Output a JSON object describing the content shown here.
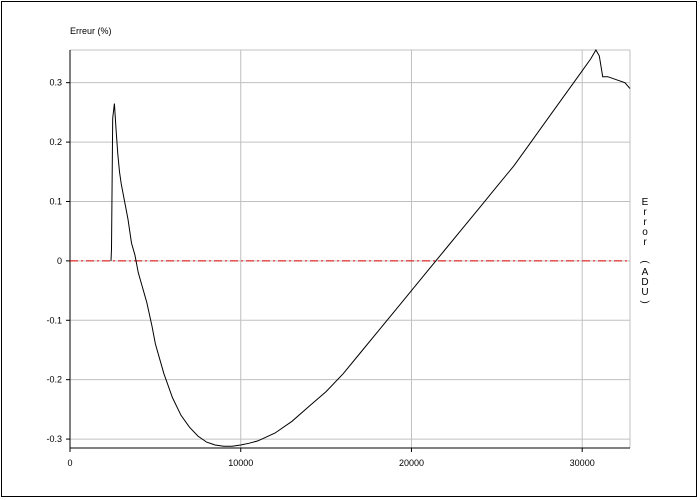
{
  "chart_data": {
    "type": "line",
    "title": "",
    "ylabel": "Erreur (%)",
    "y2label": "Error (ADU)",
    "xlabel": "",
    "xlim": [
      0,
      32800
    ],
    "ylim": [
      -0.315,
      0.355
    ],
    "grid": true,
    "xticks": [
      0,
      10000,
      20000,
      30000
    ],
    "xtick_labels": [
      "0",
      "10000",
      "20000",
      "30000"
    ],
    "yticks": [
      -0.3,
      -0.2,
      -0.1,
      0,
      0.1,
      0.2,
      0.3
    ],
    "ytick_labels": [
      "-0.3",
      "-0.2",
      "-0.1",
      "0",
      "0.1",
      "0.2",
      "0.3"
    ],
    "reference_line": {
      "y": 0,
      "color": "#dd0000",
      "style": "dash-dot"
    },
    "series": [
      {
        "color": "#000000",
        "x": [
          2400,
          2430,
          2500,
          2600,
          2700,
          2800,
          2900,
          3000,
          3200,
          3400,
          3600,
          3800,
          4000,
          4200,
          4500,
          4800,
          5000,
          5500,
          6000,
          6500,
          7000,
          7500,
          8000,
          8500,
          9000,
          9500,
          10000,
          10500,
          11000,
          12000,
          13000,
          14000,
          15000,
          16000,
          17000,
          18000,
          19000,
          20000,
          21000,
          22000,
          23000,
          24000,
          25000,
          26000,
          27000,
          28000,
          29000,
          30000,
          30500,
          30800,
          31000,
          31200,
          31500,
          32000,
          32500,
          32800
        ],
        "y": [
          0.0,
          0.02,
          0.24,
          0.265,
          0.22,
          0.18,
          0.15,
          0.13,
          0.1,
          0.07,
          0.03,
          0.01,
          -0.02,
          -0.04,
          -0.07,
          -0.11,
          -0.14,
          -0.19,
          -0.23,
          -0.26,
          -0.28,
          -0.295,
          -0.305,
          -0.31,
          -0.312,
          -0.312,
          -0.31,
          -0.307,
          -0.303,
          -0.29,
          -0.27,
          -0.245,
          -0.22,
          -0.19,
          -0.155,
          -0.12,
          -0.085,
          -0.05,
          -0.015,
          0.02,
          0.055,
          0.09,
          0.125,
          0.16,
          0.2,
          0.24,
          0.28,
          0.32,
          0.34,
          0.355,
          0.345,
          0.31,
          0.31,
          0.305,
          0.3,
          0.29
        ]
      }
    ]
  }
}
